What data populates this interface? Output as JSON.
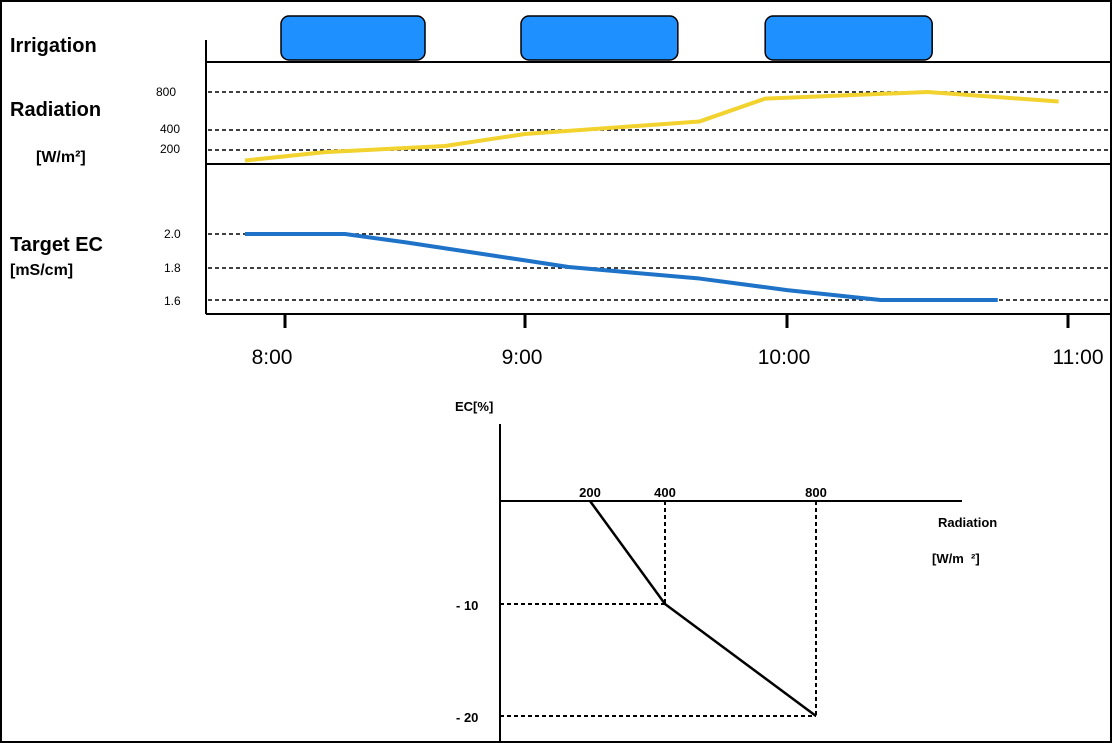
{
  "colors": {
    "irrigation": "#1E90FF",
    "radiation_line": "#F2D22E",
    "ec_line": "#1E73C8",
    "ink": "#000000"
  },
  "labels": {
    "irrigation": "Irrigation",
    "radiation": "Radiation",
    "radiation_unit": "[W/m²]",
    "target_ec": "Target EC",
    "ec_unit": "[mS/cm]"
  },
  "chart_data": [
    {
      "type": "timeline",
      "title": "Irrigation",
      "irrigation_events": [
        {
          "start": "7:59",
          "end": "8:35"
        },
        {
          "start": "8:59",
          "end": "9:35"
        },
        {
          "start": "9:55",
          "end": "10:31"
        }
      ]
    },
    {
      "type": "line",
      "title": "Radiation",
      "ylabel": "[W/m²]",
      "y_ticks": [
        "800",
        "400",
        "200"
      ],
      "grid": "dashed",
      "series": [
        {
          "x": [
            "7:50",
            "8:10",
            "8:40",
            "9:00",
            "9:40",
            "9:55",
            "10:30",
            "10:58"
          ],
          "y": [
            50,
            170,
            240,
            360,
            490,
            730,
            800,
            700
          ]
        }
      ]
    },
    {
      "type": "line",
      "title": "Target EC",
      "ylabel": "[mS/cm]",
      "y_ticks": [
        "2.0",
        "1.8",
        "1.6"
      ],
      "grid": "dashed",
      "series": [
        {
          "x": [
            "7:50",
            "8:15",
            "8:30",
            "9:00",
            "9:10",
            "9:40",
            "10:00",
            "10:20",
            "10:45"
          ],
          "y": [
            2.0,
            2.0,
            1.95,
            1.84,
            1.8,
            1.73,
            1.66,
            1.6,
            1.6
          ]
        }
      ]
    },
    {
      "type": "line",
      "ylabel": "EC[%]",
      "xlabel": "Radiation",
      "xunit": "[W/m  ²]",
      "x_ticks": [
        "200",
        "400",
        "800"
      ],
      "y_ticks": [
        "- 10",
        "- 20"
      ],
      "series": [
        {
          "x": [
            200,
            400,
            800
          ],
          "y": [
            0,
            -10,
            -20
          ]
        }
      ]
    }
  ],
  "time_axis": {
    "ticks": [
      "8:00",
      "9:00",
      "10:00",
      "11:00"
    ]
  }
}
